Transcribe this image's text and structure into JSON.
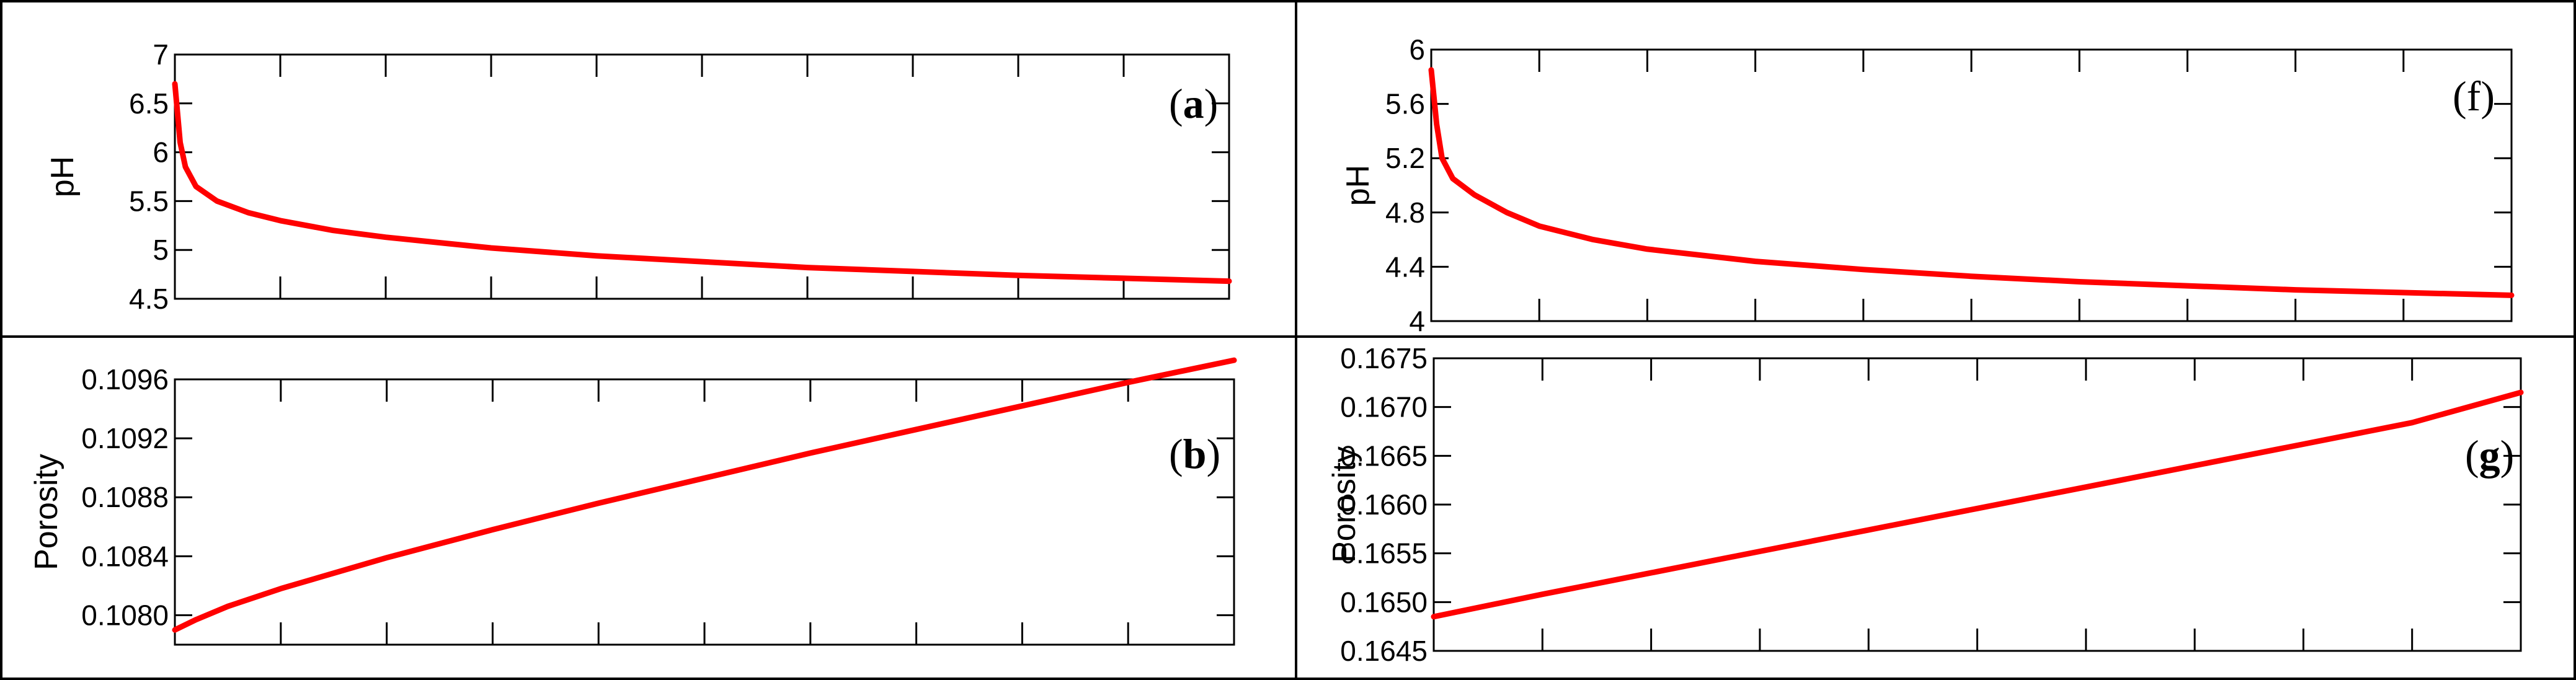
{
  "chart_data": [
    {
      "panel": "a",
      "type": "line",
      "ylabel": "pH",
      "panel_label": "a",
      "ylim": [
        4.5,
        7
      ],
      "yticks": [
        "7",
        "6.5",
        "6",
        "5.5",
        "5",
        "4.5"
      ],
      "x": [
        0,
        0.005,
        0.01,
        0.02,
        0.04,
        0.07,
        0.1,
        0.15,
        0.2,
        0.3,
        0.4,
        0.5,
        0.6,
        0.7,
        0.8,
        0.9,
        1.0
      ],
      "series": [
        {
          "color": "#ff0000",
          "values": [
            6.7,
            6.1,
            5.85,
            5.65,
            5.5,
            5.38,
            5.3,
            5.2,
            5.13,
            5.02,
            4.94,
            4.88,
            4.82,
            4.78,
            4.74,
            4.71,
            4.68
          ]
        }
      ],
      "grid": false
    },
    {
      "panel": "b",
      "type": "line",
      "ylabel": "Porosity",
      "panel_label": "b",
      "ylim": [
        0.1078,
        0.1096
      ],
      "yticks": [
        "0.1096",
        "0.1092",
        "0.1088",
        "0.1084",
        "0.1080"
      ],
      "x": [
        0,
        0.02,
        0.05,
        0.1,
        0.2,
        0.3,
        0.4,
        0.5,
        0.6,
        0.7,
        0.8,
        0.9,
        1.0
      ],
      "series": [
        {
          "color": "#ff0000",
          "values": [
            0.1079,
            0.10797,
            0.10806,
            0.10818,
            0.10839,
            0.10858,
            0.10876,
            0.10893,
            0.1091,
            0.10926,
            0.10942,
            0.10958,
            0.10973
          ]
        }
      ],
      "grid": false
    },
    {
      "panel": "f",
      "type": "line",
      "ylabel": "pH",
      "panel_label": "f",
      "ylim": [
        4,
        6
      ],
      "yticks": [
        "6",
        "5.6",
        "5.2",
        "4.8",
        "4.4",
        "4"
      ],
      "x": [
        0,
        0.005,
        0.01,
        0.02,
        0.04,
        0.07,
        0.1,
        0.15,
        0.2,
        0.3,
        0.4,
        0.5,
        0.6,
        0.7,
        0.8,
        0.9,
        1.0
      ],
      "series": [
        {
          "color": "#ff0000",
          "values": [
            5.85,
            5.45,
            5.2,
            5.05,
            4.93,
            4.8,
            4.7,
            4.6,
            4.53,
            4.44,
            4.38,
            4.33,
            4.29,
            4.26,
            4.23,
            4.21,
            4.19
          ]
        }
      ],
      "grid": false
    },
    {
      "panel": "g",
      "type": "line",
      "ylabel": "Porosity",
      "panel_label": "g",
      "ylim": [
        0.1645,
        0.1675
      ],
      "yticks": [
        "0.1675",
        "0.1670",
        "0.1665",
        "0.1660",
        "0.1655",
        "0.1650",
        "0.1645"
      ],
      "x": [
        0,
        0.1,
        0.2,
        0.3,
        0.4,
        0.5,
        0.6,
        0.7,
        0.8,
        0.9,
        1.0
      ],
      "series": [
        {
          "color": "#ff0000",
          "values": [
            0.16485,
            0.16508,
            0.1653,
            0.16552,
            0.16574,
            0.16596,
            0.16618,
            0.1664,
            0.16662,
            0.16684,
            0.16715
          ]
        }
      ],
      "grid": false
    }
  ]
}
